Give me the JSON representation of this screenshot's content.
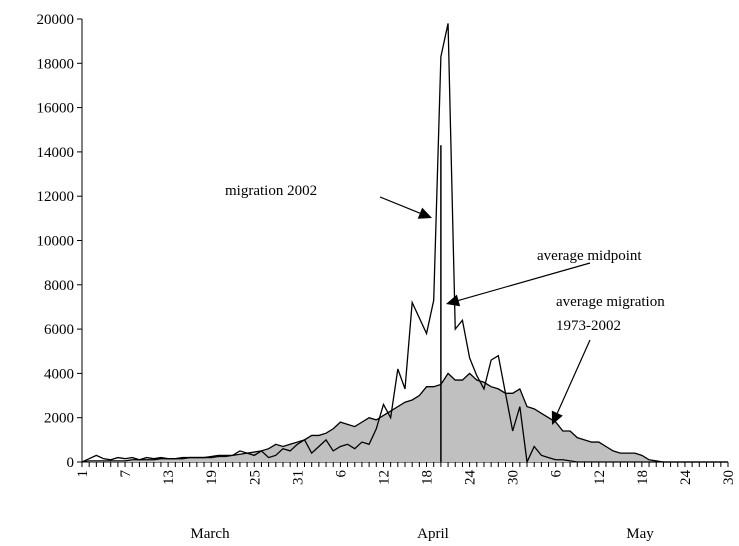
{
  "chart_data": {
    "type": "area-line",
    "categories": [
      "1",
      null,
      null,
      null,
      null,
      null,
      "7",
      null,
      null,
      null,
      null,
      null,
      "13",
      null,
      null,
      null,
      null,
      null,
      "19",
      null,
      null,
      null,
      null,
      null,
      "25",
      null,
      null,
      null,
      null,
      null,
      "31",
      null,
      null,
      null,
      null,
      null,
      "6",
      null,
      null,
      null,
      null,
      null,
      "12",
      null,
      null,
      null,
      null,
      null,
      "18",
      null,
      null,
      null,
      null,
      null,
      "24",
      null,
      null,
      null,
      null,
      null,
      "30",
      null,
      null,
      null,
      null,
      null,
      "6",
      null,
      null,
      null,
      null,
      null,
      "12",
      null,
      null,
      null,
      null,
      null,
      "18",
      null,
      null,
      null,
      null,
      null,
      "24",
      null,
      null,
      null,
      null,
      null,
      "30"
    ],
    "month_labels": [
      "March",
      "April",
      "May"
    ],
    "series": [
      {
        "style": "area",
        "color": "#c0c0c0",
        "values": [
          0,
          50,
          50,
          50,
          50,
          50,
          50,
          100,
          100,
          100,
          100,
          150,
          150,
          150,
          150,
          200,
          200,
          200,
          200,
          250,
          250,
          300,
          350,
          400,
          450,
          500,
          600,
          800,
          700,
          800,
          900,
          1000,
          1200,
          1200,
          1300,
          1500,
          1800,
          1700,
          1600,
          1800,
          2000,
          1900,
          2100,
          2300,
          2500,
          2700,
          2800,
          3000,
          3400,
          3400,
          3500,
          4000,
          3700,
          3700,
          4000,
          3700,
          3600,
          3400,
          3300,
          3100,
          3100,
          3300,
          2500,
          2400,
          2200,
          2000,
          1800,
          1400,
          1400,
          1100,
          1000,
          900,
          900,
          700,
          500,
          400,
          400,
          400,
          300,
          100,
          50,
          0,
          0,
          0,
          0,
          0,
          0,
          0,
          0,
          0,
          0
        ]
      },
      {
        "style": "line",
        "color": "#000000",
        "values": [
          0,
          150,
          300,
          150,
          100,
          200,
          150,
          200,
          100,
          200,
          150,
          200,
          150,
          150,
          200,
          200,
          200,
          200,
          250,
          300,
          300,
          300,
          500,
          400,
          300,
          500,
          200,
          300,
          600,
          500,
          800,
          1000,
          400,
          700,
          1000,
          500,
          700,
          800,
          600,
          900,
          800,
          1500,
          2600,
          2000,
          4200,
          3300,
          7200,
          6500,
          5800,
          7300,
          18300,
          19800,
          6000,
          6400,
          4700,
          3900,
          3300,
          4600,
          4800,
          3100,
          1400,
          2500,
          0,
          700,
          300,
          200,
          100,
          100,
          50,
          0,
          0,
          0,
          0,
          0,
          0,
          0,
          0,
          0,
          0,
          0,
          0,
          0,
          0,
          0,
          0,
          0,
          0,
          0,
          0,
          0,
          0
        ]
      },
      {
        "style": "stem",
        "color": "#000000",
        "values": [
          null,
          null,
          null,
          null,
          null,
          null,
          null,
          null,
          null,
          null,
          null,
          null,
          null,
          null,
          null,
          null,
          null,
          null,
          null,
          null,
          null,
          null,
          null,
          null,
          null,
          null,
          null,
          null,
          null,
          null,
          null,
          null,
          null,
          null,
          null,
          null,
          null,
          null,
          null,
          null,
          null,
          null,
          null,
          null,
          null,
          null,
          null,
          null,
          null,
          null,
          14300,
          null,
          null,
          null,
          null,
          null,
          null,
          null,
          null,
          null,
          null,
          null,
          null,
          null,
          null,
          null,
          null,
          null,
          null,
          null,
          null,
          null,
          null,
          null,
          null,
          null,
          null,
          null,
          null,
          null,
          null,
          null,
          null,
          null,
          null,
          null,
          null,
          null,
          null,
          null,
          null
        ]
      }
    ],
    "annotations": [
      [
        "migration 2002"
      ],
      [
        "average midpoint"
      ],
      [
        "average migration",
        "1973-2002"
      ]
    ],
    "ylim": [
      0,
      20000
    ],
    "yticks": [
      0,
      2000,
      4000,
      6000,
      8000,
      10000,
      12000,
      14000,
      16000,
      18000,
      20000
    ],
    "grid": false
  }
}
